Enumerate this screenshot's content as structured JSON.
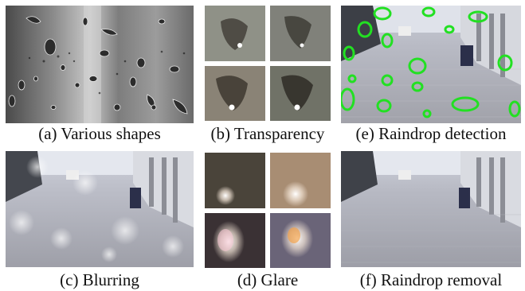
{
  "figure": {
    "captions": {
      "a": "(a) Various shapes",
      "b": "(b) Transparency",
      "c": "(c) Blurring",
      "d": "(d) Glare",
      "e": "(e) Raindrop detection",
      "f": "(f) Raindrop removal"
    }
  },
  "colors": {
    "detection_outline": "#22e022",
    "pavement": "#a9aab2",
    "sky": "#dfe2ea"
  }
}
